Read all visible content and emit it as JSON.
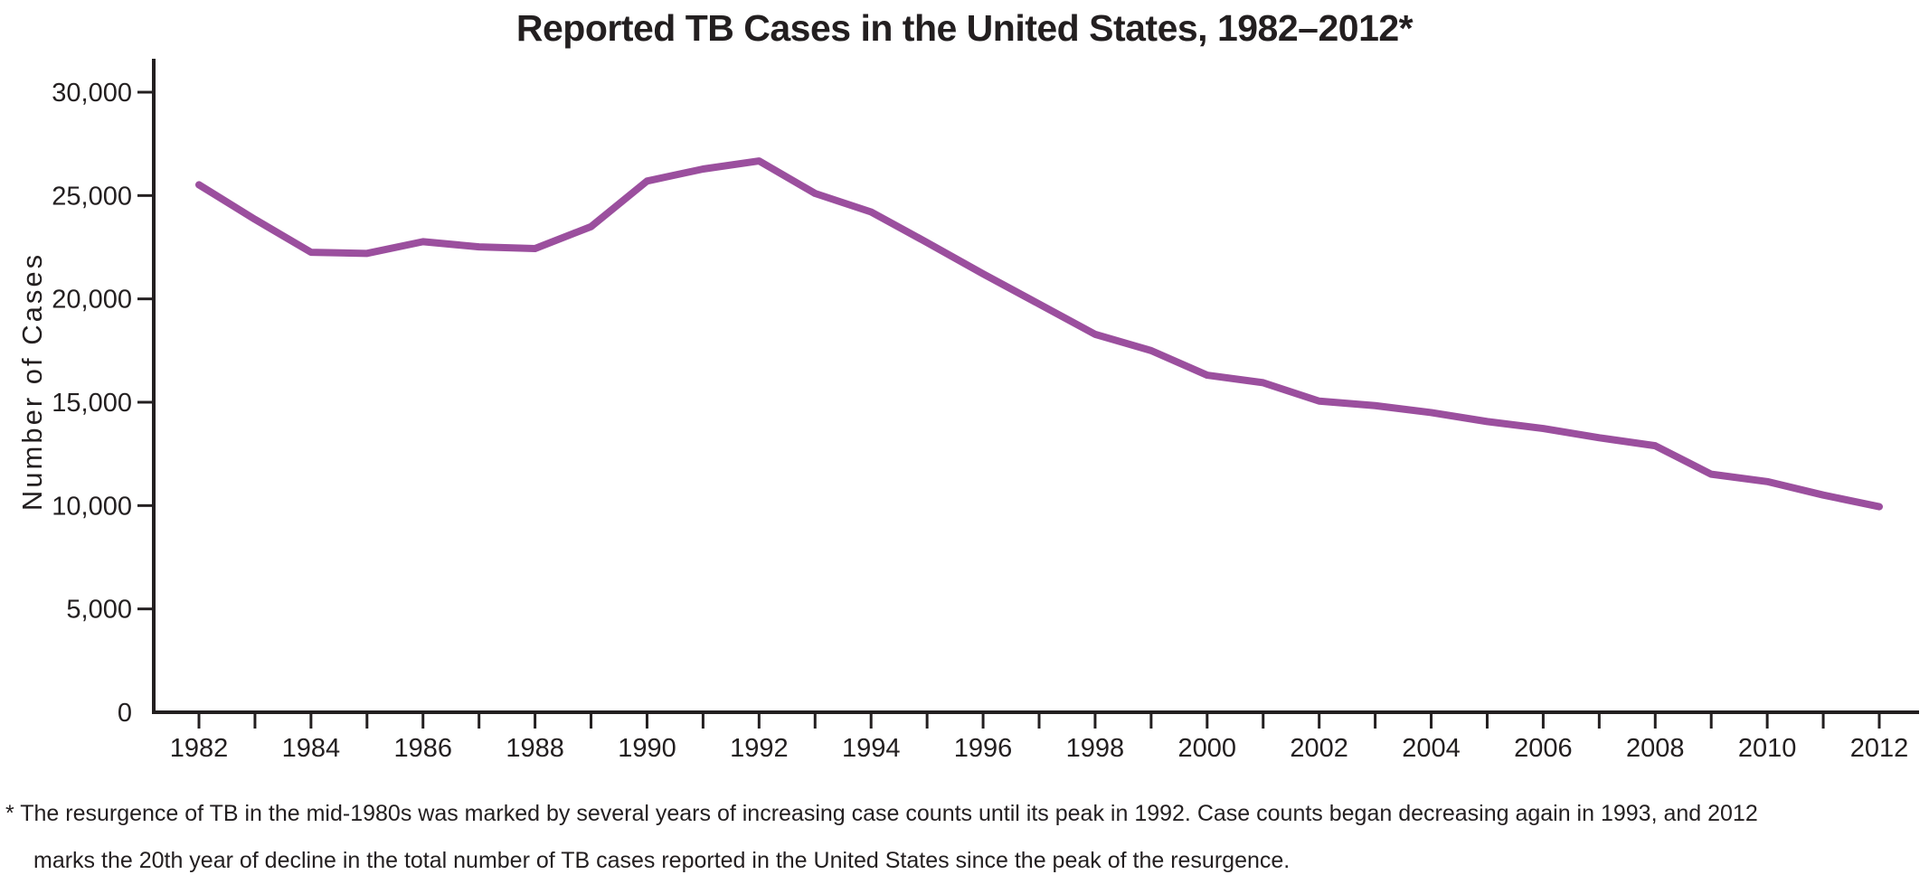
{
  "chart_data": {
    "type": "line",
    "title": "Reported TB Cases in the United States, 1982–2012*",
    "ylabel": "Number of Cases",
    "xlabel": "",
    "x": [
      1982,
      1983,
      1984,
      1985,
      1986,
      1987,
      1988,
      1989,
      1990,
      1991,
      1992,
      1993,
      1994,
      1995,
      1996,
      1997,
      1998,
      1999,
      2000,
      2001,
      2002,
      2003,
      2004,
      2005,
      2006,
      2007,
      2008,
      2009,
      2010,
      2011,
      2012
    ],
    "series": [
      {
        "name": "Reported TB cases",
        "color": "#9b4f9e",
        "values": [
          25520,
          23846,
          22255,
          22201,
          22768,
          22517,
          22436,
          23495,
          25701,
          26283,
          26673,
          25102,
          24206,
          22726,
          21210,
          19751,
          18286,
          17499,
          16308,
          15945,
          15055,
          14835,
          14499,
          14065,
          13728,
          13280,
          12895,
          11517,
          11161,
          10509,
          9945
        ]
      }
    ],
    "ylim": [
      0,
      30000
    ],
    "yticks": [
      0,
      5000,
      10000,
      15000,
      20000,
      25000,
      30000
    ],
    "ytick_labels": [
      "0",
      "5,000",
      "10,000",
      "15,000",
      "20,000",
      "25,000",
      "30,000"
    ],
    "xtick_label_every": 2,
    "grid": false,
    "legend": "none",
    "axis_color": "#231f20",
    "footnote": [
      "* The resurgence of TB in the mid-1980s was marked by several years of increasing case counts until its peak in 1992. Case counts began decreasing again in 1993, and 2012",
      "marks the 20th year of decline in the total number of TB cases reported in the United States since the peak of the resurgence."
    ]
  }
}
